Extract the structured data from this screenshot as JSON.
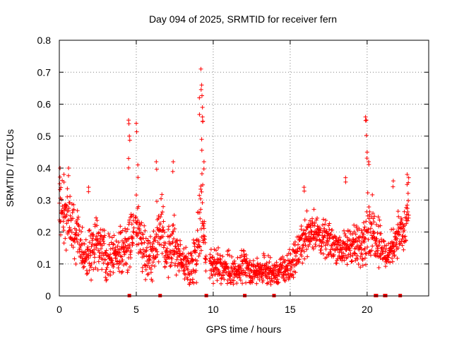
{
  "chart_data": {
    "type": "scatter",
    "title": "Day 094 of 2025, SRMTID for receiver fern",
    "xlabel": "GPS time / hours",
    "ylabel": "SRMTID / TECUs",
    "xlim": [
      0,
      24
    ],
    "ylim": [
      0,
      0.8
    ],
    "x_ticks": [
      0,
      5,
      10,
      15,
      20
    ],
    "y_ticks": [
      0,
      0.1,
      0.2,
      0.3,
      0.4,
      0.5,
      0.6,
      0.7,
      0.8
    ],
    "x_tick_labels": [
      "0",
      "5",
      "10",
      "15",
      "20"
    ],
    "y_tick_labels": [
      "0",
      "0.1",
      "0.2",
      "0.3",
      "0.4",
      "0.5",
      "0.6",
      "0.7",
      "0.8"
    ],
    "grid": true,
    "marker": "+",
    "colors": {
      "series": "#ff0000",
      "grid": "#808080",
      "axis": "#000000"
    },
    "series": [
      {
        "name": "SRMTID",
        "profile": [
          [
            0.0,
            0.3,
            0.07
          ],
          [
            0.3,
            0.26,
            0.07
          ],
          [
            0.6,
            0.23,
            0.07
          ],
          [
            0.9,
            0.19,
            0.07
          ],
          [
            1.2,
            0.2,
            0.06
          ],
          [
            1.6,
            0.12,
            0.05
          ],
          [
            2.0,
            0.13,
            0.06
          ],
          [
            2.4,
            0.18,
            0.06
          ],
          [
            3.0,
            0.12,
            0.05
          ],
          [
            3.5,
            0.13,
            0.05
          ],
          [
            4.0,
            0.14,
            0.05
          ],
          [
            4.6,
            0.18,
            0.07
          ],
          [
            5.0,
            0.22,
            0.08
          ],
          [
            5.5,
            0.14,
            0.06
          ],
          [
            6.0,
            0.12,
            0.05
          ],
          [
            6.5,
            0.22,
            0.08
          ],
          [
            7.0,
            0.14,
            0.05
          ],
          [
            7.5,
            0.16,
            0.06
          ],
          [
            8.0,
            0.1,
            0.04
          ],
          [
            8.5,
            0.09,
            0.04
          ],
          [
            9.0,
            0.16,
            0.08
          ],
          [
            9.3,
            0.3,
            0.1
          ],
          [
            9.5,
            0.12,
            0.05
          ],
          [
            10.0,
            0.09,
            0.04
          ],
          [
            10.5,
            0.09,
            0.04
          ],
          [
            11.0,
            0.08,
            0.04
          ],
          [
            11.5,
            0.07,
            0.03
          ],
          [
            12.0,
            0.09,
            0.05
          ],
          [
            12.5,
            0.07,
            0.03
          ],
          [
            13.0,
            0.08,
            0.03
          ],
          [
            13.5,
            0.08,
            0.03
          ],
          [
            14.0,
            0.07,
            0.03
          ],
          [
            14.5,
            0.08,
            0.03
          ],
          [
            15.0,
            0.09,
            0.04
          ],
          [
            15.5,
            0.14,
            0.04
          ],
          [
            16.0,
            0.19,
            0.05
          ],
          [
            16.5,
            0.21,
            0.05
          ],
          [
            17.0,
            0.18,
            0.04
          ],
          [
            17.5,
            0.17,
            0.04
          ],
          [
            18.0,
            0.16,
            0.04
          ],
          [
            18.5,
            0.14,
            0.04
          ],
          [
            19.0,
            0.17,
            0.05
          ],
          [
            19.5,
            0.14,
            0.05
          ],
          [
            20.0,
            0.23,
            0.08
          ],
          [
            20.4,
            0.2,
            0.06
          ],
          [
            20.8,
            0.18,
            0.06
          ],
          [
            21.2,
            0.12,
            0.03
          ],
          [
            21.6,
            0.15,
            0.04
          ],
          [
            22.0,
            0.2,
            0.05
          ],
          [
            22.4,
            0.19,
            0.05
          ],
          [
            22.7,
            0.28,
            0.07
          ]
        ],
        "peaks": [
          [
            0.05,
            0.4
          ],
          [
            0.3,
            0.38
          ],
          [
            0.6,
            0.4
          ],
          [
            1.9,
            0.34
          ],
          [
            4.5,
            0.55
          ],
          [
            4.55,
            0.5
          ],
          [
            4.5,
            0.43
          ],
          [
            5.0,
            0.54
          ],
          [
            5.1,
            0.41
          ],
          [
            6.3,
            0.42
          ],
          [
            7.4,
            0.42
          ],
          [
            9.1,
            0.62
          ],
          [
            9.2,
            0.71
          ],
          [
            9.25,
            0.66
          ],
          [
            9.3,
            0.59
          ],
          [
            9.3,
            0.56
          ],
          [
            9.25,
            0.49
          ],
          [
            9.4,
            0.42
          ],
          [
            15.9,
            0.34
          ],
          [
            18.6,
            0.37
          ],
          [
            19.9,
            0.56
          ],
          [
            19.95,
            0.55
          ],
          [
            20.0,
            0.45
          ],
          [
            20.1,
            0.42
          ],
          [
            21.7,
            0.36
          ],
          [
            22.6,
            0.38
          ],
          [
            22.7,
            0.37
          ]
        ],
        "gaps": [
          [
            4.85,
            4.95
          ],
          [
            9.55,
            9.75
          ]
        ]
      }
    ],
    "event_markers_x": [
      4.55,
      6.55,
      9.55,
      12.05,
      13.95,
      20.55,
      20.6,
      21.15,
      21.2,
      22.15
    ]
  }
}
